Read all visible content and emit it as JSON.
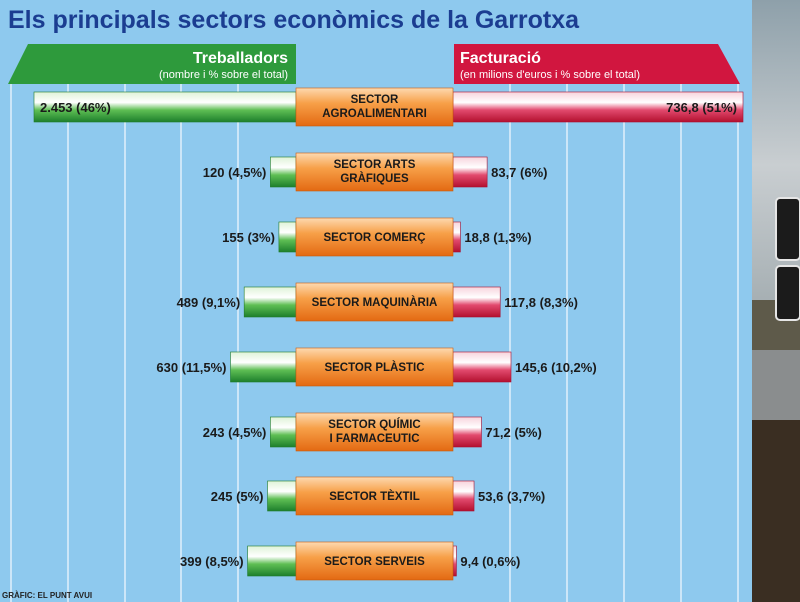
{
  "chart_data": {
    "type": "bar",
    "title": "Els principals sectors econòmics de la Garrotxa",
    "left_header": {
      "title": "Treballadors",
      "subtitle": "(nombre i % sobre el total)"
    },
    "right_header": {
      "title": "Facturació",
      "subtitle": "(en milions d'euros i % sobre el total)"
    },
    "source": "GRÀFIC: EL PUNT AVUI",
    "categories": [
      [
        "SECTOR",
        "AGROALIMENTARI"
      ],
      [
        "SECTOR ARTS",
        "GRÀFIQUES"
      ],
      [
        "SECTOR COMERÇ"
      ],
      [
        "SECTOR MAQUINÀRIA"
      ],
      [
        "SECTOR PLÀSTIC"
      ],
      [
        "SECTOR QUÍMIC",
        "I FARMACEUTIC"
      ],
      [
        "SECTOR TÈXTIL"
      ],
      [
        "SECTOR SERVEIS"
      ]
    ],
    "series": [
      {
        "name": "Treballadors",
        "values": [
          2453,
          120,
          155,
          489,
          630,
          243,
          245,
          399
        ],
        "percent": [
          46,
          4.5,
          3,
          9.1,
          11.5,
          4.5,
          5,
          8.5
        ],
        "labels": [
          "2.453 (46%)",
          "120 (4,5%)",
          "155 (3%)",
          "489 (9,1%)",
          "630 (11,5%)",
          "243 (4,5%)",
          "245 (5%)",
          "399 (8,5%)"
        ]
      },
      {
        "name": "Facturació",
        "values": [
          736.8,
          83.7,
          18.8,
          117.8,
          145.6,
          71.2,
          53.6,
          9.4
        ],
        "percent": [
          51,
          6,
          1.3,
          8.3,
          10.2,
          5,
          3.7,
          0.6
        ],
        "labels": [
          "736,8 (51%)",
          "83,7 (6%)",
          "18,8 (1,3%)",
          "117,8 (8,3%)",
          "145,6 (10,2%)",
          "71,2 (5%)",
          "53,6 (3,7%)",
          "9,4 (0,6%)"
        ]
      }
    ],
    "colors": {
      "background": "#8ec9ee",
      "title": "#1b3d91",
      "left": "#2e9a3c",
      "right": "#d1163f",
      "label_box": "#f07a1e",
      "gridline": "#ffffff"
    }
  }
}
